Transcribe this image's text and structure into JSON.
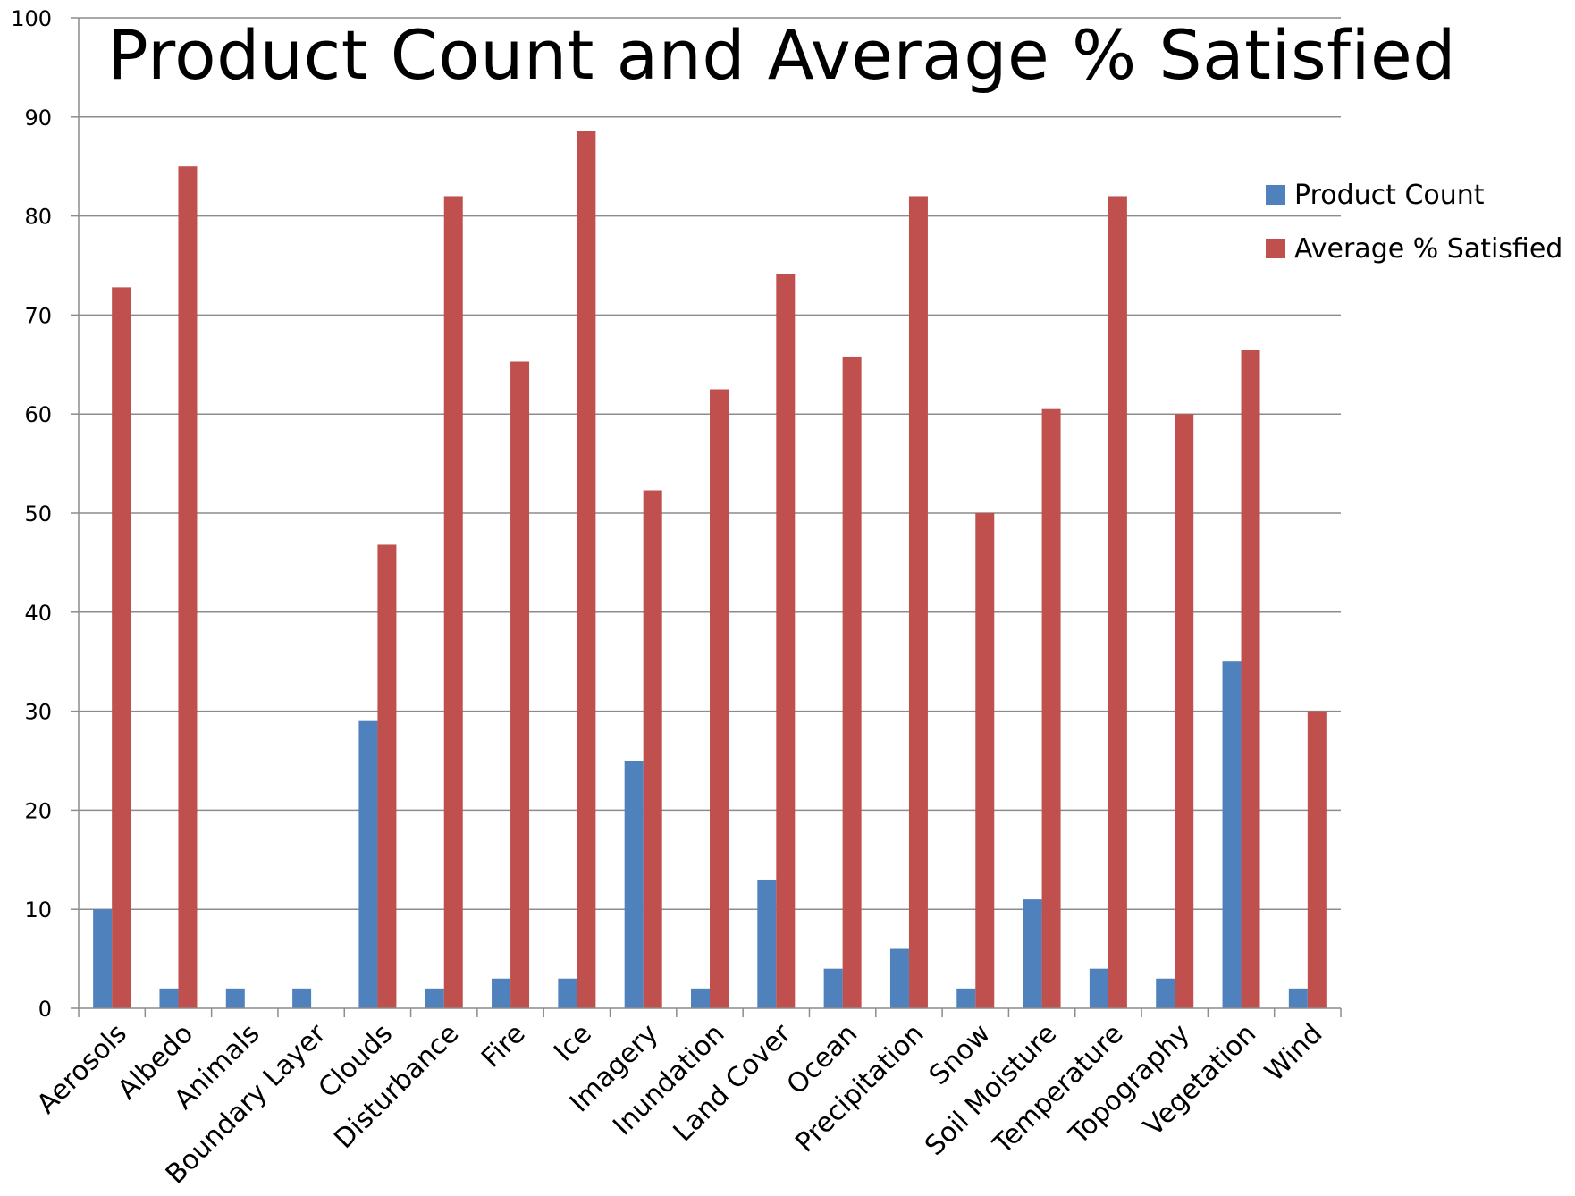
{
  "chart_data": {
    "type": "bar",
    "title": "Product Count and Average % Satisfied",
    "xlabel": "",
    "ylabel": "",
    "ylim": [
      0,
      100
    ],
    "yticks": [
      0,
      10,
      20,
      30,
      40,
      50,
      60,
      70,
      80,
      90,
      100
    ],
    "grid": true,
    "legend_position": "right",
    "categories": [
      "Aerosols",
      "Albedo",
      "Animals",
      "Boundary Layer",
      "Clouds",
      "Disturbance",
      "Fire",
      "Ice",
      "Imagery",
      "Inundation",
      "Land Cover",
      "Ocean",
      "Precipitation",
      "Snow",
      "Soil Moisture",
      "Temperature",
      "Topography",
      "Vegetation",
      "Wind"
    ],
    "series": [
      {
        "name": "Product Count",
        "color": "#4F81BD",
        "values": [
          10,
          2,
          2,
          2,
          29,
          2,
          3,
          3,
          25,
          2,
          13,
          4,
          6,
          2,
          11,
          4,
          3,
          35,
          2
        ]
      },
      {
        "name": "Average % Satisfied",
        "color": "#C0504D",
        "values": [
          72.8,
          85,
          null,
          null,
          46.8,
          82,
          65.3,
          88.6,
          52.3,
          62.5,
          74.1,
          65.8,
          82,
          50,
          60.5,
          82,
          60,
          66.5,
          30
        ]
      }
    ]
  }
}
